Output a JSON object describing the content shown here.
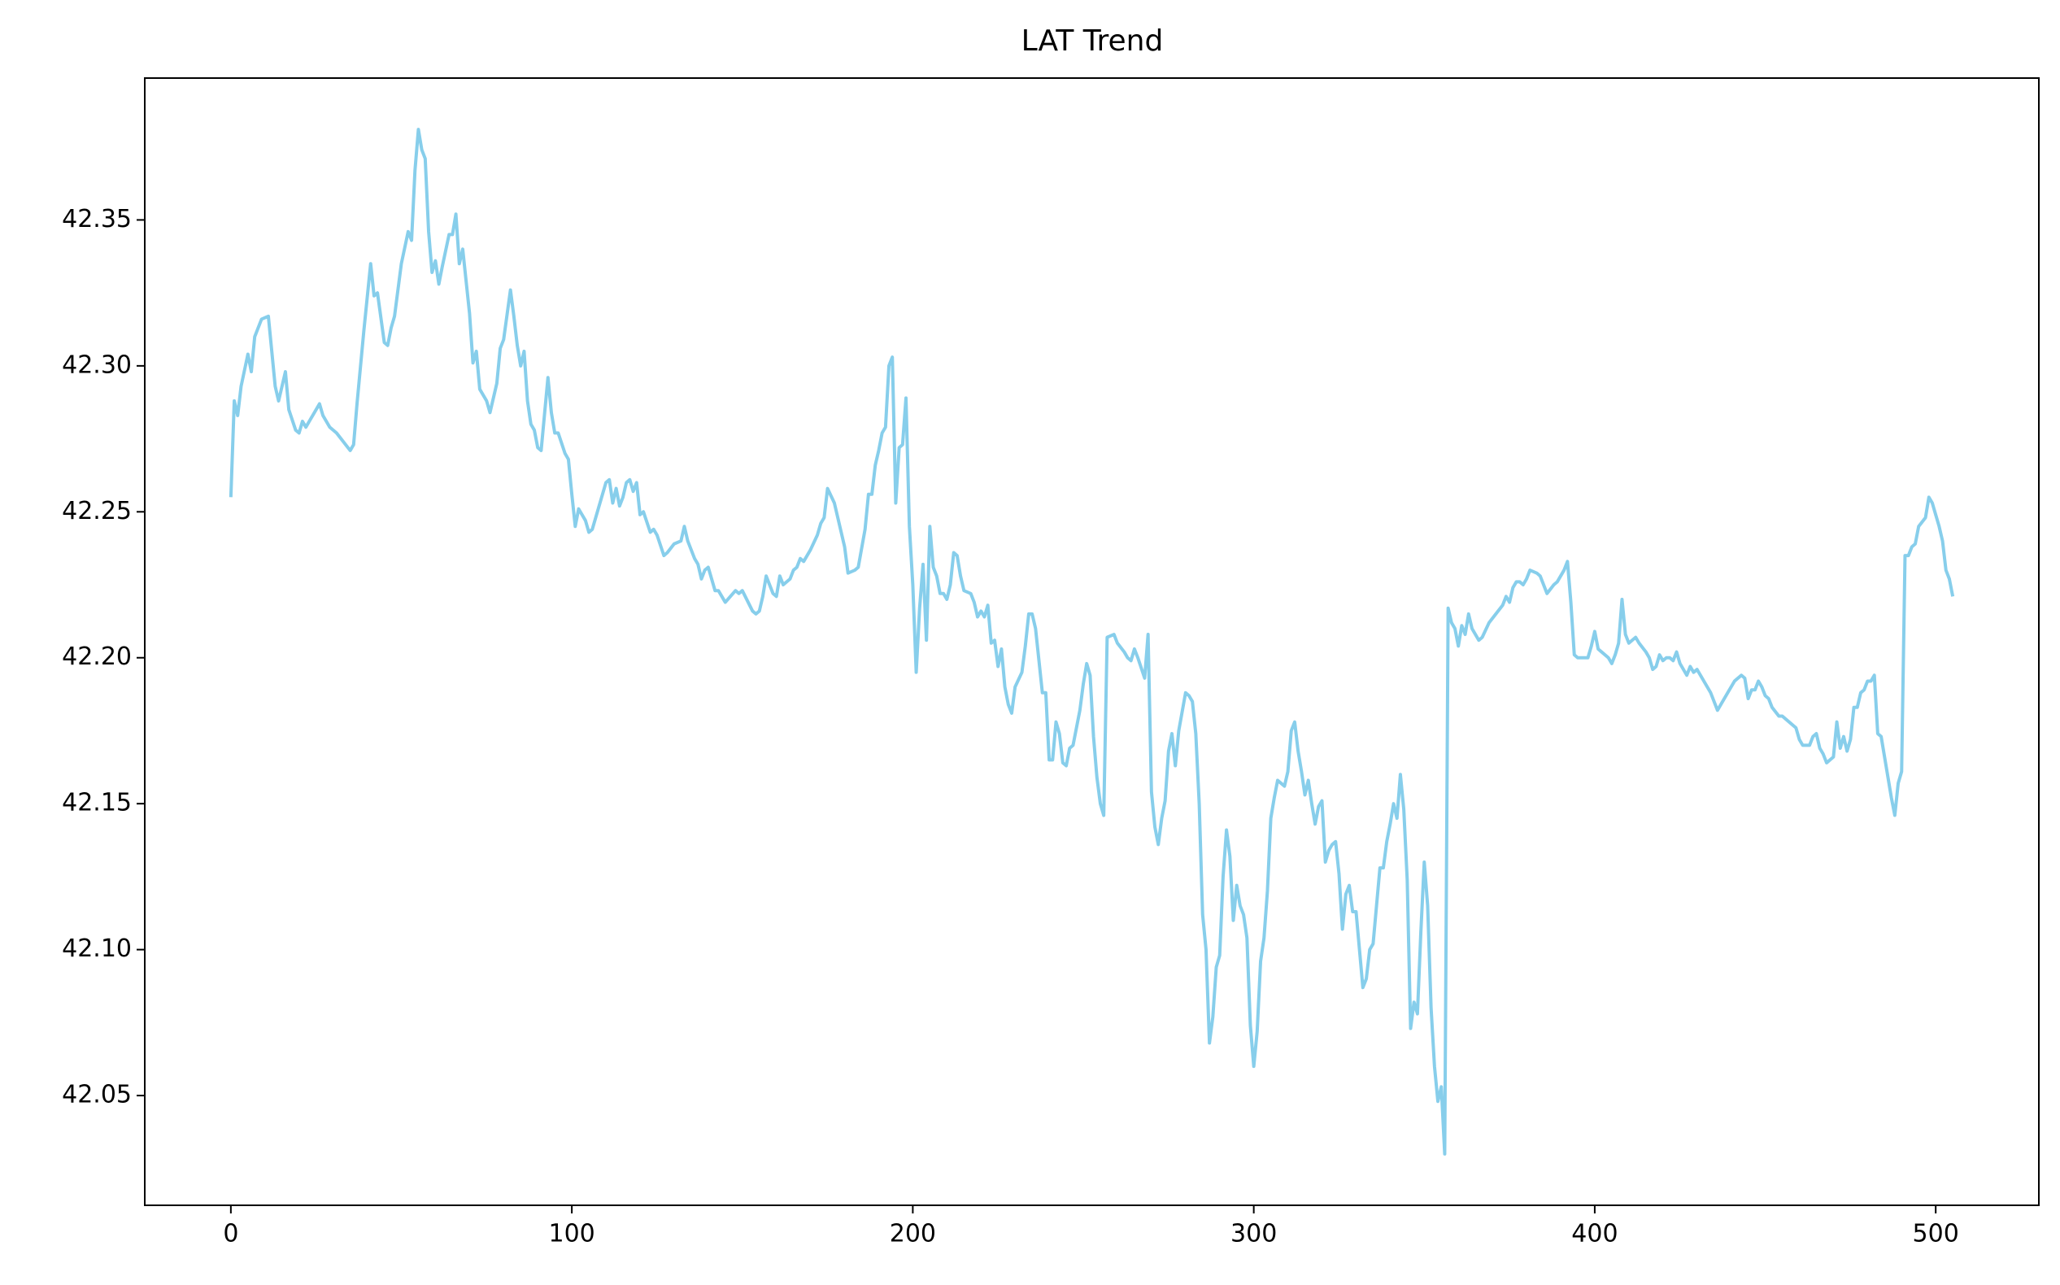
{
  "chart_data": {
    "type": "line",
    "title": "LAT Trend",
    "x": [
      0,
      1,
      2,
      3,
      5,
      6,
      7,
      9,
      11,
      13,
      14,
      16,
      17,
      19,
      20,
      21,
      22,
      24,
      26,
      27,
      29,
      31,
      35,
      36,
      37,
      39,
      41,
      42,
      43,
      45,
      46,
      47,
      48,
      50,
      52,
      53,
      54,
      55,
      56,
      57,
      58,
      59,
      60,
      61,
      62,
      64,
      65,
      66,
      67,
      68,
      70,
      71,
      72,
      73,
      75,
      76,
      78,
      79,
      80,
      82,
      83,
      84,
      85,
      86,
      87,
      88,
      89,
      90,
      91,
      93,
      94,
      95,
      96,
      98,
      99,
      100,
      101,
      102,
      104,
      105,
      106,
      108,
      110,
      111,
      112,
      113,
      114,
      115,
      116,
      117,
      118,
      119,
      120,
      121,
      123,
      124,
      125,
      127,
      128,
      130,
      132,
      133,
      134,
      136,
      137,
      138,
      139,
      140,
      142,
      143,
      145,
      148,
      149,
      150,
      153,
      154,
      155,
      156,
      157,
      159,
      160,
      161,
      162,
      164,
      165,
      166,
      167,
      168,
      170,
      172,
      173,
      174,
      175,
      177,
      178,
      180,
      181,
      183,
      184,
      186,
      187,
      188,
      189,
      190,
      191,
      192,
      193,
      194,
      195,
      196,
      197,
      198,
      199,
      200,
      201,
      202,
      203,
      204,
      205,
      206,
      207,
      208,
      209,
      210,
      211,
      212,
      213,
      214,
      215,
      217,
      218,
      219,
      220,
      221,
      222,
      223,
      224,
      225,
      226,
      227,
      228,
      229,
      230,
      232,
      233,
      234,
      235,
      236,
      238,
      239,
      240,
      241,
      242,
      243,
      244,
      245,
      246,
      247,
      248,
      249,
      250,
      251,
      252,
      253,
      254,
      255,
      256,
      257,
      259,
      260,
      262,
      263,
      264,
      265,
      266,
      268,
      269,
      270,
      271,
      272,
      273,
      274,
      275,
      276,
      277,
      278,
      280,
      281,
      282,
      283,
      284,
      285,
      286,
      287,
      288,
      289,
      290,
      291,
      292,
      293,
      294,
      295,
      296,
      297,
      298,
      299,
      300,
      301,
      302,
      303,
      304,
      305,
      306,
      307,
      308,
      309,
      310,
      311,
      312,
      313,
      314,
      315,
      316,
      317,
      318,
      319,
      320,
      321,
      322,
      323,
      324,
      325,
      326,
      327,
      328,
      329,
      330,
      331,
      332,
      333,
      334,
      335,
      336,
      337,
      338,
      339,
      340,
      341,
      342,
      343,
      344,
      345,
      346,
      347,
      348,
      349,
      350,
      351,
      352,
      353,
      354,
      355,
      356,
      357,
      358,
      359,
      360,
      361,
      362,
      363,
      364,
      366,
      367,
      369,
      371,
      373,
      374,
      375,
      376,
      377,
      378,
      379,
      380,
      381,
      383,
      384,
      385,
      386,
      388,
      389,
      391,
      392,
      393,
      394,
      395,
      398,
      399,
      400,
      401,
      402,
      404,
      405,
      406,
      407,
      408,
      409,
      410,
      412,
      413,
      415,
      416,
      417,
      418,
      419,
      420,
      421,
      422,
      423,
      424,
      425,
      427,
      428,
      429,
      430,
      431,
      433,
      434,
      436,
      437,
      439,
      441,
      443,
      444,
      445,
      446,
      447,
      448,
      449,
      450,
      451,
      452,
      454,
      455,
      457,
      459,
      460,
      461,
      463,
      464,
      465,
      466,
      467,
      468,
      470,
      471,
      472,
      473,
      474,
      475,
      476,
      477,
      478,
      479,
      480,
      481,
      482,
      483,
      484,
      485,
      486,
      487,
      488,
      489,
      490,
      491,
      492,
      493,
      494,
      495,
      497,
      498,
      499,
      500,
      501,
      502,
      503,
      504,
      505
    ],
    "series": [
      {
        "name": "LAT",
        "color": "#87ceeb",
        "values": [
          42.255,
          42.288,
          42.283,
          42.293,
          42.304,
          42.298,
          42.31,
          42.316,
          42.317,
          42.293,
          42.288,
          42.298,
          42.285,
          42.278,
          42.277,
          42.281,
          42.279,
          42.283,
          42.287,
          42.283,
          42.279,
          42.277,
          42.271,
          42.273,
          42.287,
          42.312,
          42.335,
          42.324,
          42.325,
          42.308,
          42.307,
          42.313,
          42.317,
          42.335,
          42.346,
          42.343,
          42.367,
          42.381,
          42.374,
          42.371,
          42.346,
          42.332,
          42.336,
          42.328,
          42.334,
          42.345,
          42.345,
          42.352,
          42.335,
          42.34,
          42.318,
          42.301,
          42.305,
          42.292,
          42.288,
          42.284,
          42.294,
          42.306,
          42.309,
          42.326,
          42.317,
          42.307,
          42.3,
          42.305,
          42.288,
          42.28,
          42.278,
          42.272,
          42.271,
          42.296,
          42.284,
          42.277,
          42.277,
          42.27,
          42.268,
          42.256,
          42.245,
          42.251,
          42.247,
          42.243,
          42.244,
          42.252,
          42.26,
          42.261,
          42.253,
          42.258,
          42.252,
          42.255,
          42.26,
          42.261,
          42.257,
          42.26,
          42.249,
          42.25,
          42.243,
          42.244,
          42.242,
          42.235,
          42.236,
          42.239,
          42.24,
          42.245,
          42.24,
          42.234,
          42.232,
          42.227,
          42.23,
          42.231,
          42.223,
          42.223,
          42.219,
          42.223,
          42.222,
          42.223,
          42.216,
          42.215,
          42.216,
          42.221,
          42.228,
          42.222,
          42.221,
          42.228,
          42.225,
          42.227,
          42.23,
          42.231,
          42.234,
          42.233,
          42.237,
          42.242,
          42.246,
          42.248,
          42.258,
          42.253,
          42.248,
          42.238,
          42.229,
          42.23,
          42.231,
          42.244,
          42.256,
          42.256,
          42.266,
          42.271,
          42.277,
          42.279,
          42.3,
          42.303,
          42.253,
          42.272,
          42.273,
          42.289,
          42.245,
          42.225,
          42.195,
          42.217,
          42.232,
          42.206,
          42.245,
          42.231,
          42.228,
          42.222,
          42.222,
          42.22,
          42.225,
          42.236,
          42.235,
          42.228,
          42.223,
          42.222,
          42.219,
          42.214,
          42.216,
          42.214,
          42.218,
          42.205,
          42.206,
          42.197,
          42.203,
          42.19,
          42.184,
          42.181,
          42.19,
          42.195,
          42.204,
          42.215,
          42.215,
          42.21,
          42.188,
          42.188,
          42.165,
          42.165,
          42.178,
          42.174,
          42.164,
          42.163,
          42.169,
          42.17,
          42.176,
          42.182,
          42.191,
          42.198,
          42.194,
          42.173,
          42.159,
          42.15,
          42.146,
          42.207,
          42.208,
          42.205,
          42.202,
          42.2,
          42.199,
          42.203,
          42.2,
          42.193,
          42.208,
          42.154,
          42.142,
          42.136,
          42.145,
          42.151,
          42.168,
          42.174,
          42.163,
          42.175,
          42.188,
          42.187,
          42.185,
          42.174,
          42.15,
          42.112,
          42.1,
          42.068,
          42.077,
          42.094,
          42.098,
          42.125,
          42.141,
          42.132,
          42.11,
          42.122,
          42.115,
          42.112,
          42.104,
          42.074,
          42.06,
          42.072,
          42.096,
          42.104,
          42.12,
          42.145,
          42.152,
          42.158,
          42.157,
          42.156,
          42.161,
          42.175,
          42.178,
          42.168,
          42.161,
          42.153,
          42.158,
          42.15,
          42.143,
          42.149,
          42.151,
          42.13,
          42.134,
          42.136,
          42.137,
          42.126,
          42.107,
          42.119,
          42.122,
          42.113,
          42.113,
          42.1,
          42.087,
          42.09,
          42.1,
          42.102,
          42.115,
          42.128,
          42.128,
          42.137,
          42.143,
          42.15,
          42.145,
          42.16,
          42.148,
          42.124,
          42.073,
          42.082,
          42.078,
          42.106,
          42.13,
          42.115,
          42.08,
          42.06,
          42.048,
          42.053,
          42.03,
          42.217,
          42.212,
          42.21,
          42.204,
          42.211,
          42.208,
          42.215,
          42.21,
          42.206,
          42.207,
          42.212,
          42.215,
          42.218,
          42.221,
          42.219,
          42.224,
          42.226,
          42.226,
          42.225,
          42.227,
          42.23,
          42.229,
          42.228,
          42.225,
          42.222,
          42.225,
          42.226,
          42.23,
          42.233,
          42.219,
          42.201,
          42.2,
          42.2,
          42.204,
          42.209,
          42.203,
          42.202,
          42.2,
          42.198,
          42.201,
          42.205,
          42.22,
          42.208,
          42.205,
          42.207,
          42.205,
          42.202,
          42.2,
          42.196,
          42.197,
          42.201,
          42.199,
          42.2,
          42.2,
          42.199,
          42.202,
          42.198,
          42.194,
          42.197,
          42.195,
          42.196,
          42.194,
          42.19,
          42.188,
          42.182,
          42.184,
          42.188,
          42.192,
          42.194,
          42.193,
          42.186,
          42.189,
          42.189,
          42.192,
          42.19,
          42.187,
          42.186,
          42.183,
          42.18,
          42.18,
          42.178,
          42.176,
          42.172,
          42.17,
          42.17,
          42.173,
          42.174,
          42.169,
          42.167,
          42.164,
          42.166,
          42.178,
          42.169,
          42.173,
          42.168,
          42.172,
          42.183,
          42.183,
          42.188,
          42.189,
          42.192,
          42.192,
          42.194,
          42.174,
          42.173,
          42.166,
          42.159,
          42.152,
          42.146,
          42.157,
          42.161,
          42.235,
          42.235,
          42.238,
          42.239,
          42.245,
          42.248,
          42.255,
          42.253,
          42.249,
          42.245,
          42.24,
          42.23,
          42.227,
          42.221
        ]
      }
    ],
    "xlim": [
      -25.25,
      530.25
    ],
    "xticks": [
      0,
      100,
      200,
      300,
      400,
      500
    ],
    "ylim": [
      42.0124,
      42.3986
    ],
    "yticks": [
      42.05,
      {
        "value": 42.1,
        "label": "42.10"
      },
      42.15,
      {
        "value": 42.2,
        "label": "42.20"
      },
      42.25,
      {
        "value": 42.3,
        "label": "42.30"
      },
      42.35
    ],
    "grid": false
  }
}
